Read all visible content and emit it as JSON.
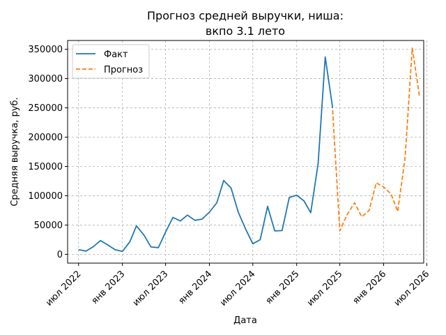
{
  "chart_data": {
    "type": "line",
    "title": "Прогноз средней выручки, ниша:\nвкпо 3.1 лето",
    "xlabel": "Дата",
    "ylabel": "Средняя выручка, руб.",
    "ylim": [
      -15000,
      365000
    ],
    "xlim": [
      "2022-05-16",
      "2026-06-18"
    ],
    "yticks": [
      0,
      50000,
      100000,
      150000,
      200000,
      250000,
      300000,
      350000
    ],
    "ytick_labels": [
      "0",
      "50000",
      "100000",
      "150000",
      "200000",
      "250000",
      "300000",
      "350000"
    ],
    "xticks": [
      "2022-07-01",
      "2023-01-01",
      "2023-07-01",
      "2024-01-01",
      "2024-07-01",
      "2025-01-01",
      "2025-07-01",
      "2026-01-01",
      "2026-07-01"
    ],
    "xtick_labels": [
      "июл 2022",
      "янв 2023",
      "июл 2023",
      "янв 2024",
      "июл 2024",
      "янв 2025",
      "июл 2025",
      "янв 2026",
      "июл 2026"
    ],
    "grid": true,
    "legend_position": "top-left",
    "series": [
      {
        "name": "Факт",
        "color": "#1f77b4",
        "style": "solid",
        "points": [
          [
            "2022-07-01",
            8000
          ],
          [
            "2022-08-01",
            5500
          ],
          [
            "2022-09-01",
            13000
          ],
          [
            "2022-10-01",
            23500
          ],
          [
            "2022-11-01",
            16000
          ],
          [
            "2022-12-01",
            8000
          ],
          [
            "2023-01-01",
            5000
          ],
          [
            "2023-02-01",
            21500
          ],
          [
            "2023-03-01",
            48500
          ],
          [
            "2023-04-01",
            33000
          ],
          [
            "2023-05-01",
            12500
          ],
          [
            "2023-06-01",
            11500
          ],
          [
            "2023-07-01",
            38000
          ],
          [
            "2023-08-01",
            63000
          ],
          [
            "2023-09-01",
            57000
          ],
          [
            "2023-10-01",
            67000
          ],
          [
            "2023-11-01",
            58000
          ],
          [
            "2023-12-01",
            60000
          ],
          [
            "2024-01-01",
            72000
          ],
          [
            "2024-02-01",
            88000
          ],
          [
            "2024-03-01",
            126000
          ],
          [
            "2024-04-01",
            113000
          ],
          [
            "2024-05-01",
            72000
          ],
          [
            "2024-06-01",
            43000
          ],
          [
            "2024-07-01",
            18000
          ],
          [
            "2024-08-01",
            25000
          ],
          [
            "2024-09-01",
            82000
          ],
          [
            "2024-10-01",
            40000
          ],
          [
            "2024-11-01",
            40500
          ],
          [
            "2024-12-01",
            97000
          ],
          [
            "2025-01-01",
            101000
          ],
          [
            "2025-02-01",
            91000
          ],
          [
            "2025-03-01",
            71000
          ],
          [
            "2025-04-01",
            155000
          ],
          [
            "2025-05-01",
            337000
          ],
          [
            "2025-06-01",
            250000
          ]
        ]
      },
      {
        "name": "Прогноз",
        "color": "#ff7f0e",
        "style": "dashed",
        "points": [
          [
            "2025-06-01",
            246000
          ],
          [
            "2025-07-01",
            40000
          ],
          [
            "2025-08-01",
            68000
          ],
          [
            "2025-09-01",
            88000
          ],
          [
            "2025-10-01",
            64000
          ],
          [
            "2025-11-01",
            75000
          ],
          [
            "2025-12-01",
            122000
          ],
          [
            "2026-01-01",
            115000
          ],
          [
            "2026-02-01",
            103000
          ],
          [
            "2026-03-01",
            73000
          ],
          [
            "2026-04-01",
            165000
          ],
          [
            "2026-05-01",
            352000
          ],
          [
            "2026-06-01",
            268000
          ]
        ]
      }
    ]
  }
}
